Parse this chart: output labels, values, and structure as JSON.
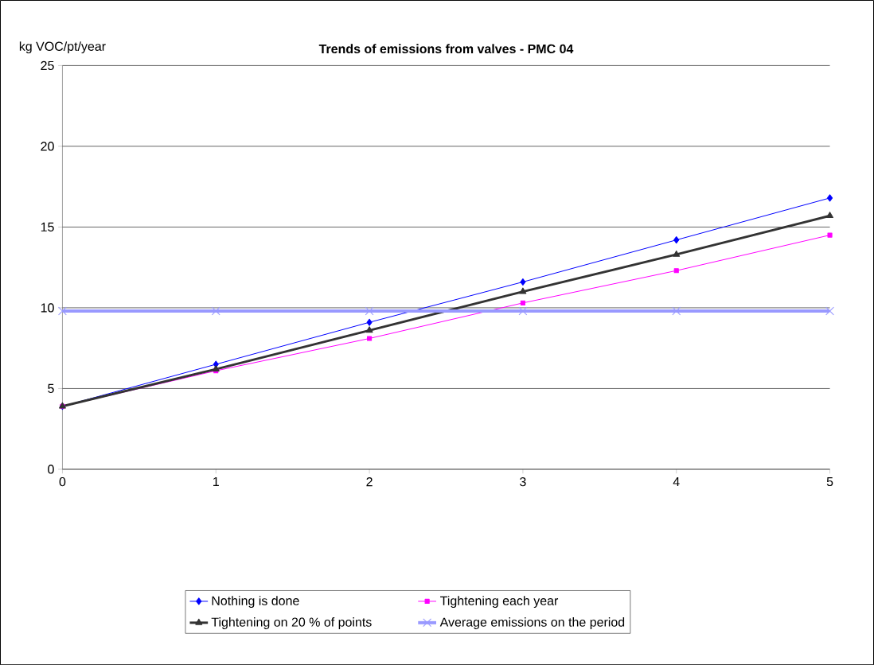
{
  "chart_data": {
    "type": "line",
    "title": "Trends of emissions from valves - PMC 04",
    "ylabel": "kg VOC/pt/year",
    "x": [
      0,
      1,
      2,
      3,
      4,
      5
    ],
    "series": [
      {
        "name": "Nothing is done",
        "color": "#0000ff",
        "marker": "diamond",
        "values": [
          3.9,
          6.5,
          9.1,
          11.6,
          14.2,
          16.8
        ]
      },
      {
        "name": "Tightening each year",
        "color": "#ff00ff",
        "marker": "square",
        "values": [
          3.9,
          6.1,
          8.1,
          10.3,
          12.3,
          14.5
        ]
      },
      {
        "name": "Tightening on 20 % of points",
        "color": "#333333",
        "marker": "triangle",
        "values": [
          3.9,
          6.2,
          8.6,
          11.0,
          13.3,
          15.7
        ]
      },
      {
        "name": "Average emissions on the period",
        "color": "#9999ff",
        "marker": "cross",
        "values": [
          9.8,
          9.8,
          9.8,
          9.8,
          9.8,
          9.8
        ]
      }
    ],
    "xlim": [
      0,
      5
    ],
    "ylim": [
      0,
      25
    ],
    "xticks": [
      0,
      1,
      2,
      3,
      4,
      5
    ],
    "yticks": [
      0,
      5,
      10,
      15,
      20,
      25
    ],
    "grid": "y",
    "legend": "bottom",
    "line_style": "solid"
  }
}
